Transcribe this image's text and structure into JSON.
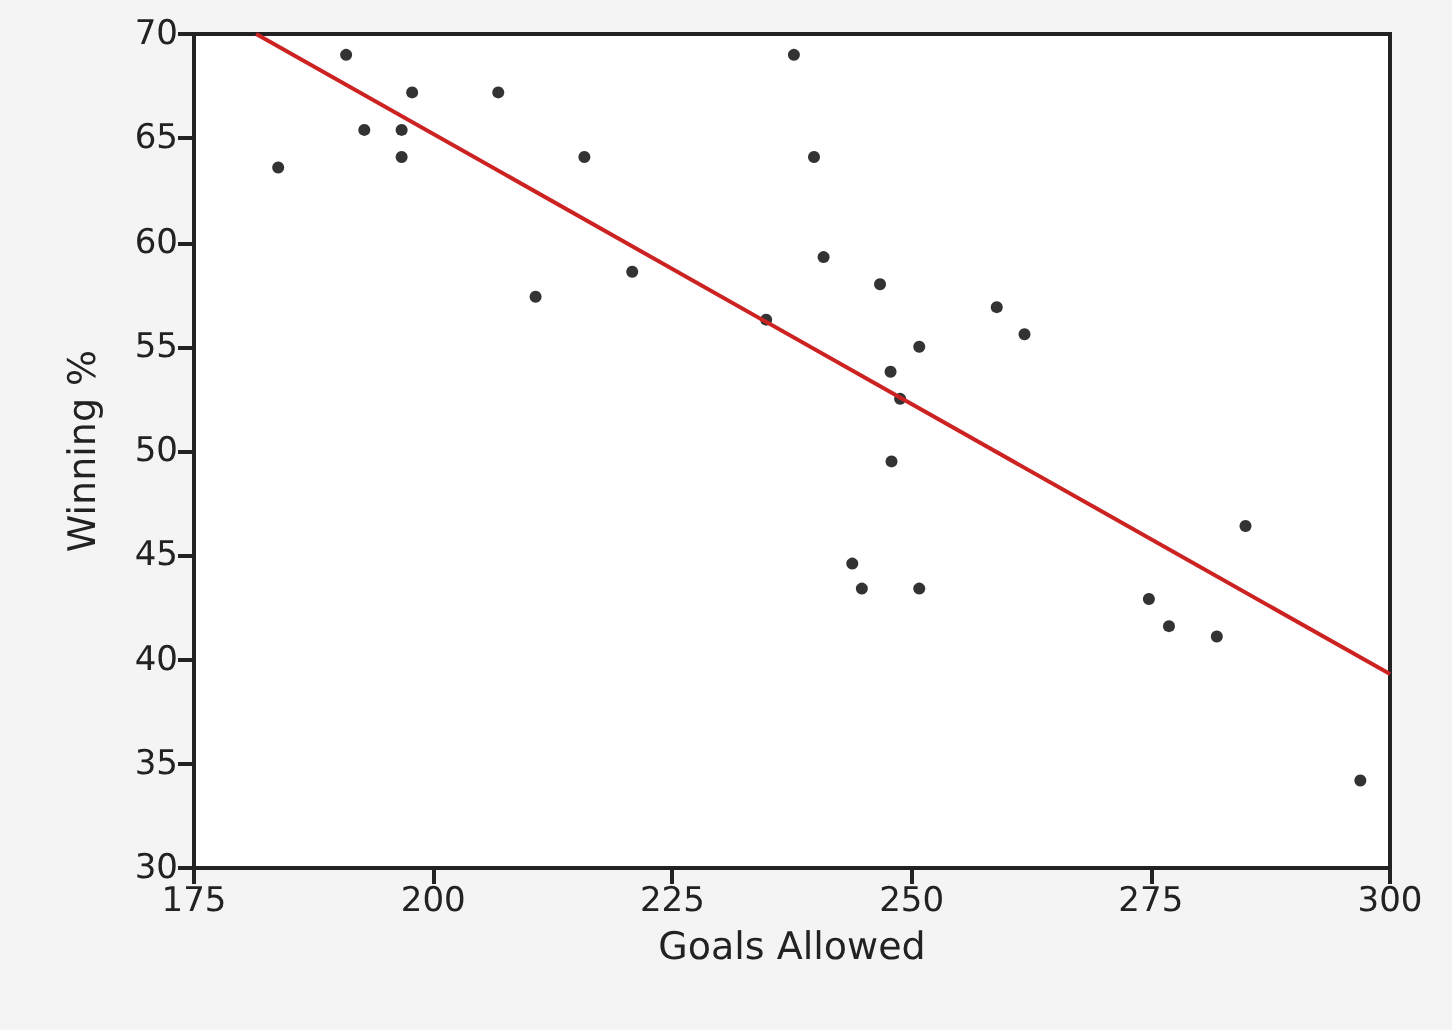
{
  "chart_data": {
    "type": "scatter",
    "xlabel": "Goals Allowed",
    "ylabel": "Winning %",
    "xlim": [
      175,
      300
    ],
    "xticks": [
      175,
      200,
      225,
      250,
      275,
      300
    ],
    "ylim": [
      30,
      70
    ],
    "yticks": [
      30,
      35,
      40,
      45,
      50,
      55,
      60,
      65,
      70
    ],
    "grid": false,
    "marker": "circle",
    "series": [
      {
        "color": "#000000",
        "x": [
          183.8,
          190.9,
          192.8,
          196.7,
          196.7,
          197.8,
          206.8,
          215.8,
          210.7,
          220.8,
          234.8,
          237.7,
          239.8,
          240.8,
          246.7,
          258.9,
          261.8,
          250.8,
          247.8,
          248.8,
          247.9,
          243.8,
          244.8,
          250.8,
          274.8,
          276.9,
          281.9,
          284.9,
          296.9
        ],
        "values": [
          63.6,
          69.0,
          65.4,
          65.4,
          64.1,
          67.2,
          67.2,
          64.1,
          57.4,
          58.6,
          56.3,
          69.0,
          64.1,
          59.3,
          58.0,
          56.9,
          55.6,
          55.0,
          53.8,
          52.5,
          49.5,
          44.6,
          43.4,
          43.4,
          42.9,
          41.6,
          41.1,
          46.4,
          34.2
        ]
      },
      {
        "type": "line",
        "color": "#cc2222",
        "marker": "none",
        "x": [
          181.5,
          300
        ],
        "values": [
          70,
          39.3
        ]
      }
    ]
  }
}
